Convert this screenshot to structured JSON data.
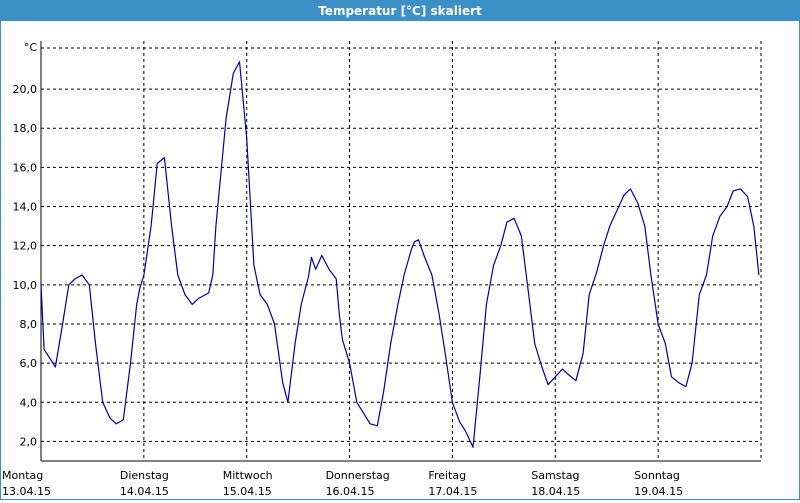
{
  "window": {
    "title": "Temperatur [°C] skaliert"
  },
  "colors": {
    "titlebar": "#3d8fc8",
    "line": "#0000aa",
    "grid": "#000000"
  },
  "chart_data": {
    "type": "line",
    "title": "Temperatur [°C] skaliert",
    "ylabel": "°C",
    "xlabel": "",
    "ylim": [
      1.0,
      22.2
    ],
    "yticks": [
      2.0,
      4.0,
      6.0,
      8.0,
      10.0,
      12.0,
      14.0,
      16.0,
      18.0,
      20.0
    ],
    "ytick_labels": [
      "2,0",
      "4,0",
      "6,0",
      "8,0",
      "10,0",
      "12,0",
      "14,0",
      "16,0",
      "18,0",
      "20,0"
    ],
    "xlim": [
      0,
      7
    ],
    "days": [
      {
        "day": "Montag",
        "date": "13.04.15"
      },
      {
        "day": "Dienstag",
        "date": "14.04.15"
      },
      {
        "day": "Mittwoch",
        "date": "15.04.15"
      },
      {
        "day": "Donnerstag",
        "date": "16.04.15"
      },
      {
        "day": "Freitag",
        "date": "17.04.15"
      },
      {
        "day": "Samstag",
        "date": "18.04.15"
      },
      {
        "day": "Sonntag",
        "date": "19.04.15"
      }
    ],
    "grid": true,
    "series": [
      {
        "x": [
          0,
          0.03,
          0.08,
          0.14,
          0.21,
          0.27,
          0.33,
          0.4,
          0.47,
          0.53,
          0.6,
          0.67,
          0.73,
          0.8,
          0.87,
          0.93,
          0.96,
          1.0,
          1.07,
          1.13,
          1.2,
          1.27,
          1.33,
          1.4,
          1.47,
          1.53,
          1.6,
          1.63,
          1.67,
          1.7,
          1.8,
          1.87,
          1.93,
          2.0,
          2.07,
          2.13,
          2.2,
          2.27,
          2.31,
          2.35,
          2.4,
          2.47,
          2.53,
          2.6,
          2.63,
          2.67,
          2.73,
          2.8,
          2.87,
          2.9,
          2.93,
          3.0,
          3.07,
          3.13,
          3.2,
          3.27,
          3.33,
          3.4,
          3.47,
          3.53,
          3.6,
          3.63,
          3.67,
          3.73,
          3.8,
          3.87,
          3.93,
          4.0,
          4.07,
          4.13,
          4.2,
          4.27,
          4.33,
          4.4,
          4.47,
          4.53,
          4.6,
          4.67,
          4.73,
          4.8,
          4.87,
          4.93,
          5.0,
          5.07,
          5.13,
          5.2,
          5.27,
          5.33,
          5.4,
          5.47,
          5.53,
          5.6,
          5.67,
          5.73,
          5.8,
          5.87,
          5.93,
          6.0,
          6.07,
          6.13,
          6.2,
          6.27,
          6.33,
          6.4,
          6.47,
          6.53,
          6.6,
          6.67,
          6.73,
          6.8,
          6.87,
          6.93,
          6.98
        ],
        "values": [
          10.0,
          6.7,
          6.3,
          5.8,
          8.0,
          10.0,
          10.3,
          10.5,
          10.0,
          7.0,
          4.0,
          3.2,
          2.9,
          3.1,
          6.0,
          9.0,
          9.8,
          10.5,
          13.0,
          16.2,
          16.5,
          13.0,
          10.5,
          9.5,
          9.0,
          9.3,
          9.5,
          9.6,
          10.5,
          13.0,
          18.5,
          20.8,
          21.4,
          17.5,
          11.0,
          9.5,
          9.0,
          8.0,
          6.5,
          5.0,
          4.0,
          7.0,
          9.0,
          10.4,
          11.4,
          10.8,
          11.5,
          10.8,
          10.3,
          8.5,
          7.2,
          6.0,
          4.0,
          3.5,
          2.9,
          2.8,
          4.5,
          7.0,
          9.0,
          10.5,
          11.8,
          12.2,
          12.3,
          11.4,
          10.5,
          8.5,
          6.5,
          4.0,
          3.0,
          2.5,
          1.7,
          5.5,
          9.0,
          11.0,
          12.0,
          13.2,
          13.4,
          12.5,
          10.0,
          7.0,
          5.8,
          4.9,
          5.3,
          5.7,
          5.4,
          5.1,
          6.5,
          9.5,
          10.6,
          12.0,
          13.0,
          13.8,
          14.6,
          14.9,
          14.2,
          13.0,
          10.5,
          8.0,
          7.0,
          5.3,
          5.0,
          4.8,
          6.0,
          9.5,
          10.5,
          12.5,
          13.5,
          14.0,
          14.8,
          14.9,
          14.5,
          13.0,
          10.5
        ]
      }
    ]
  }
}
